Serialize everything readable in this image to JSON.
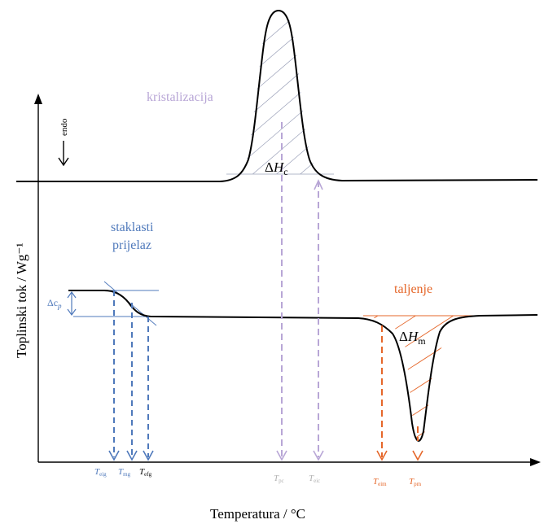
{
  "axes": {
    "x_label": "Temperatura / °C",
    "y_label": "Toplinski tok / Wg⁻¹",
    "endo_label": "endo"
  },
  "regions": {
    "crystallization": "kristalizacija",
    "glass_line1": "staklasti",
    "glass_line2": "prijelaz",
    "melting": "taljenje"
  },
  "symbols": {
    "dHc_delta": "Δ",
    "dHc_main": "H",
    "dHc_sub": "c",
    "dHm_delta": "Δ",
    "dHm_main": "H",
    "dHm_sub": "m",
    "dcp_main": "Δc",
    "dcp_sub": "p"
  },
  "temperatures": {
    "T_eig_sub": "eig",
    "T_mg_sub": "mg",
    "T_efg_sub": "efg",
    "T_pc_sub": "pc",
    "T_eic_sub": "eic",
    "T_eim_sub": "eim",
    "T_pm_sub": "pm",
    "T_main": "T"
  },
  "colors": {
    "curve": "#000000",
    "glass": "#4f79bb",
    "crystallization": "#b8a6d6",
    "melting": "#e5672a",
    "hatch_cryst": "#9aa0b8"
  }
}
